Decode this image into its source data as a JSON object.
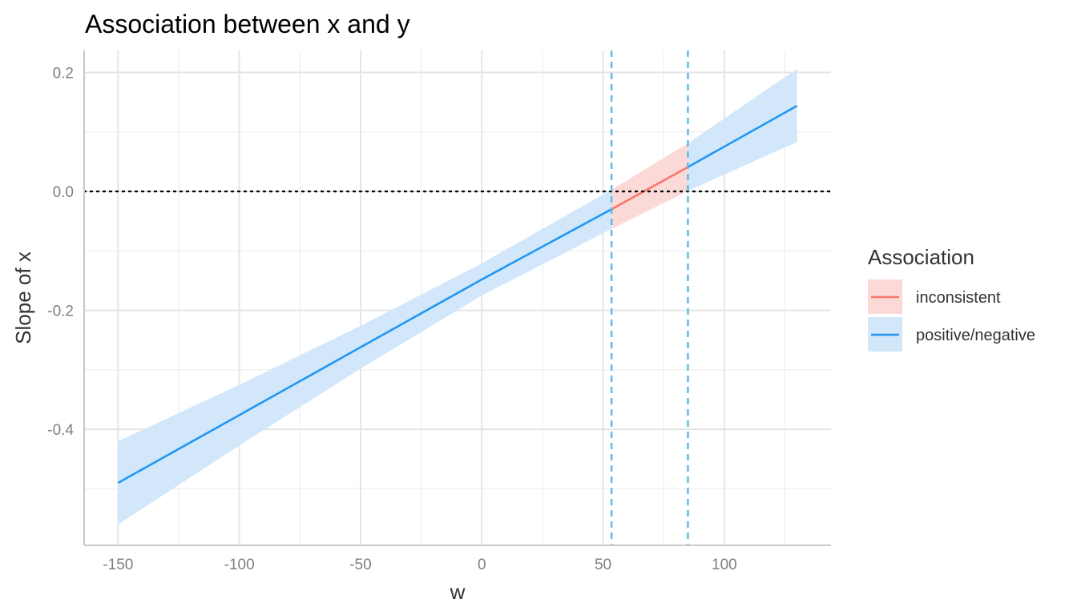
{
  "chart_data": {
    "type": "line",
    "title": "Association between x and y",
    "xlabel": "w",
    "ylabel": "Slope of x",
    "xlim": [
      -164,
      144
    ],
    "ylim": [
      -0.595,
      0.237
    ],
    "x_ticks": [
      -150,
      -100,
      -50,
      0,
      50,
      100
    ],
    "x_tick_labels": [
      "-150",
      "-100",
      "-50",
      "0",
      "50",
      "100"
    ],
    "y_ticks": [
      0.2,
      0.0,
      -0.2,
      -0.4
    ],
    "y_tick_labels": [
      "0.2",
      "0.0",
      "-0.2",
      "-0.4"
    ],
    "x_minor_ticks": [
      -125,
      -75,
      -25,
      25,
      75,
      125
    ],
    "y_minor_ticks": [
      0.1,
      -0.1,
      -0.3,
      -0.5
    ],
    "grid": true,
    "zero_reference_line": {
      "y": 0.0,
      "style": "dotted"
    },
    "johnson_neyman_bounds": [
      53.5,
      85.0
    ],
    "legend": {
      "title": "Association",
      "position": "right",
      "entries": [
        {
          "label": "inconsistent",
          "color": "#F8766D"
        },
        {
          "label": "positive/negative",
          "color": "#2196F3"
        }
      ]
    },
    "series": [
      {
        "name": "positive/negative",
        "color": "#2196F3",
        "fill": "#D2E8FA",
        "x": [
          -150,
          -100,
          -50,
          0,
          53.5
        ],
        "y": [
          -0.49,
          -0.376,
          -0.262,
          -0.148,
          -0.03
        ],
        "lower": [
          -0.56,
          -0.427,
          -0.298,
          -0.175,
          -0.063
        ],
        "upper": [
          -0.42,
          -0.325,
          -0.226,
          -0.121,
          0.003
        ]
      },
      {
        "name": "inconsistent",
        "color": "#F8766D",
        "fill": "#FAD9D7",
        "x": [
          53.5,
          85.0
        ],
        "y": [
          -0.03,
          0.041
        ],
        "lower": [
          -0.063,
          0.001
        ],
        "upper": [
          0.003,
          0.081
        ]
      },
      {
        "name": "positive/negative",
        "color": "#2196F3",
        "fill": "#D2E8FA",
        "x": [
          85.0,
          130.0
        ],
        "y": [
          0.041,
          0.144
        ],
        "lower": [
          0.001,
          0.083
        ],
        "upper": [
          0.081,
          0.206
        ]
      }
    ]
  }
}
